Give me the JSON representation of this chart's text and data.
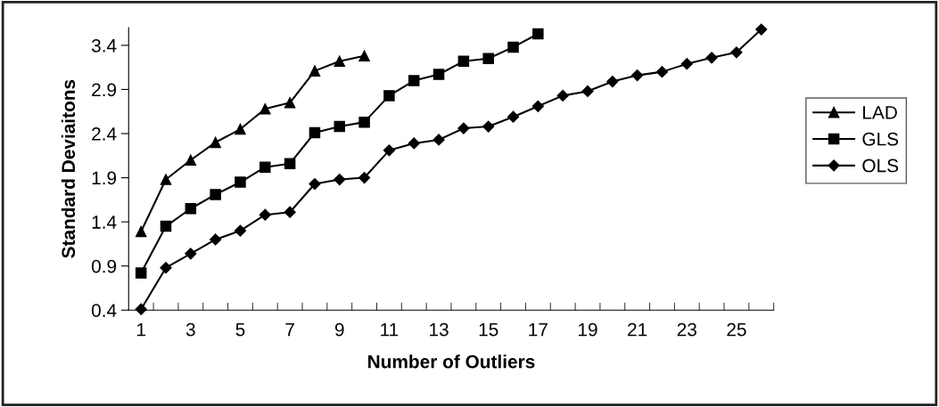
{
  "chart_data": {
    "type": "line",
    "xlabel": "Number of Outliers",
    "ylabel": "Standard Deviaitons",
    "categories": [
      "1",
      null,
      "3",
      null,
      "5",
      null,
      "7",
      null,
      "9",
      null,
      "11",
      null,
      "13",
      null,
      "15",
      null,
      "17",
      null,
      "19",
      null,
      "21",
      null,
      "23",
      null,
      "25",
      null
    ],
    "series": [
      {
        "name": "LAD",
        "color": "#000000",
        "marker": "triangle",
        "values": [
          1.29,
          1.88,
          2.1,
          2.3,
          2.45,
          2.68,
          2.75,
          3.11,
          3.22,
          3.28,
          null,
          null,
          null,
          null,
          null,
          null,
          null,
          null,
          null,
          null,
          null,
          null,
          null,
          null,
          null,
          null
        ]
      },
      {
        "name": "GLS",
        "color": "#000000",
        "marker": "square",
        "values": [
          0.82,
          1.35,
          1.55,
          1.71,
          1.85,
          2.02,
          2.06,
          2.41,
          2.48,
          2.53,
          2.83,
          3.0,
          3.07,
          3.22,
          3.25,
          3.38,
          3.53,
          null,
          null,
          null,
          null,
          null,
          null,
          null,
          null,
          null
        ]
      },
      {
        "name": "OLS",
        "color": "#000000",
        "marker": "diamond",
        "values": [
          0.41,
          0.88,
          1.04,
          1.2,
          1.3,
          1.48,
          1.51,
          1.83,
          1.88,
          1.9,
          2.21,
          2.29,
          2.33,
          2.46,
          2.48,
          2.59,
          2.71,
          2.83,
          2.88,
          2.99,
          3.06,
          3.1,
          3.19,
          3.26,
          3.32,
          3.58
        ]
      }
    ],
    "ylim": [
      0.4,
      3.6
    ],
    "yticks": [
      0.4,
      0.9,
      1.4,
      1.9,
      2.4,
      2.9,
      3.4
    ],
    "grid": false,
    "legend": "right",
    "line_style": "solid"
  }
}
